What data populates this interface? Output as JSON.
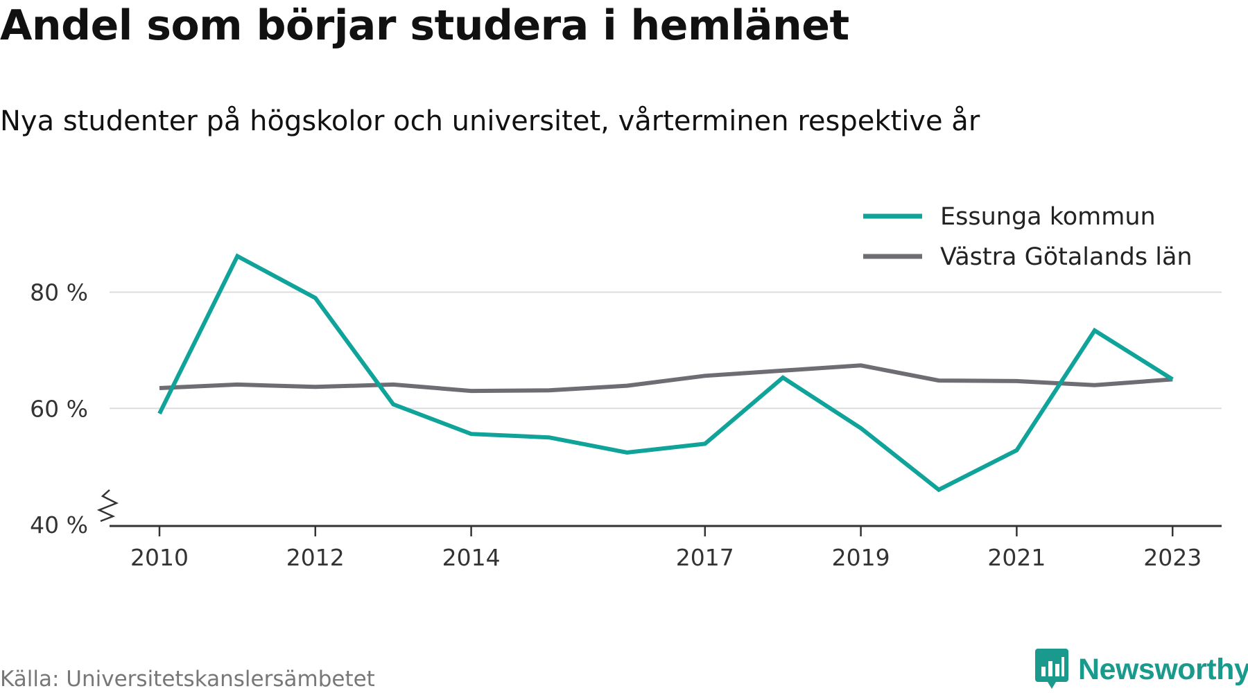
{
  "header": {
    "title": "Andel som börjar studera i hemlänet",
    "subtitle": "Nya studenter på högskolor och universitet, vårterminen respektive år"
  },
  "footer": {
    "source": "Källa: Universitetskanslersämbetet",
    "brand": "Newsworthy"
  },
  "colors": {
    "essunga": "#0fa39a",
    "vastra_gotaland": "#6e6d73",
    "grid": "#dddddd",
    "axis": "#333333",
    "brand": "#1a9a8c"
  },
  "chart_data": {
    "type": "line",
    "x": [
      2010,
      2011,
      2012,
      2013,
      2014,
      2015,
      2016,
      2017,
      2018,
      2019,
      2020,
      2021,
      2022,
      2023
    ],
    "x_ticks": [
      2010,
      2012,
      2014,
      2017,
      2019,
      2021,
      2023
    ],
    "y_ticks": [
      40,
      60,
      80
    ],
    "y_tick_labels": [
      "40 %",
      "60 %",
      "80 %"
    ],
    "ylim": [
      40,
      88
    ],
    "y_axis_break": true,
    "grid": true,
    "legend_position": "top-right",
    "series": [
      {
        "name": "Essunga kommun",
        "color": "#0fa39a",
        "values": [
          59.1,
          86.2,
          79.0,
          60.7,
          55.6,
          55.0,
          52.4,
          53.9,
          65.3,
          56.6,
          46.0,
          52.8,
          73.4,
          65.0
        ]
      },
      {
        "name": "Västra Götalands län",
        "color": "#6e6d73",
        "values": [
          63.5,
          64.1,
          63.7,
          64.1,
          63.0,
          63.1,
          63.9,
          65.6,
          66.5,
          67.4,
          64.8,
          64.7,
          64.0,
          65.0
        ]
      }
    ]
  }
}
